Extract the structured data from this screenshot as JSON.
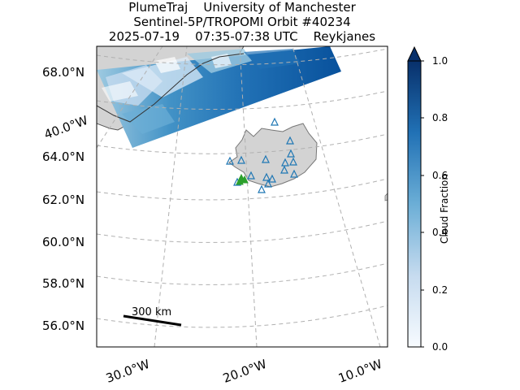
{
  "title": {
    "line1": "PlumeTraj    University of Manchester",
    "line2": "Sentinel-5P/TROPOMI Orbit #40234",
    "line3": "2025-07-19    07:35-07:38 UTC    Reykjanes"
  },
  "lat_labels": [
    "68.0°N",
    "64.0°N",
    "62.0°N",
    "60.0°N",
    "58.0°N",
    "56.0°N"
  ],
  "lon_labels": [
    "40.0°W",
    "30.0°W",
    "20.0°W",
    "10.0°W"
  ],
  "scale_bar": {
    "label": "300 km"
  },
  "colorbar": {
    "title": "Cloud Fraction",
    "ticks": [
      "1.0",
      "0.8",
      "0.6",
      "0.4",
      "0.2",
      "0.0"
    ],
    "cmap": "Blues",
    "low_color": "#f7fbff",
    "high_color": "#08306b"
  },
  "colors": {
    "land": "#d3d3d3",
    "coast": "#555555",
    "volcano_marker": "#1f77b4",
    "source_marker": "#2ca02c",
    "gridline": "#b0b0b0"
  },
  "markers": {
    "volcano": "triangle-outline",
    "source": "triangle-filled"
  }
}
